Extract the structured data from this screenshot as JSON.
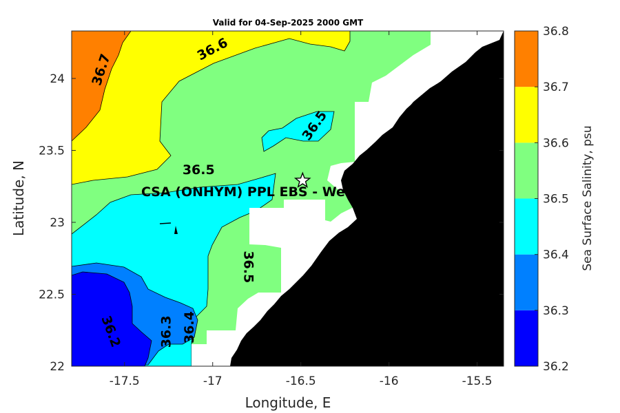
{
  "title": "Valid for 04-Sep-2025 2000 GMT",
  "xlabel": "Longitude, E",
  "ylabel": "Latitude, N",
  "colorbar_label": "Sea Surface Salinity, psu",
  "site_label": "CSA (ONHYM) PPL EBS  - We",
  "colors": {
    "bin_36_2": "#0000ff",
    "bin_36_3": "#0080ff",
    "bin_36_4": "#00ffff",
    "bin_36_5": "#80ff80",
    "bin_36_6": "#ffff00",
    "bin_36_7": "#ff8000",
    "land": "#000000",
    "no_data": "#ffffff"
  },
  "chart_data": {
    "type": "contourf",
    "xlim": [
      -17.8,
      -15.35
    ],
    "ylim": [
      22,
      24.33
    ],
    "xticks": [
      -17.5,
      -17,
      -16.5,
      -16,
      -15.5
    ],
    "xtick_labels": [
      "-17.5",
      "-17",
      "-16.5",
      "-16",
      "-15.5"
    ],
    "yticks": [
      22,
      22.5,
      23,
      23.5,
      24
    ],
    "ytick_labels": [
      "22",
      "22.5",
      "23",
      "23.5",
      "24"
    ],
    "colorbar": {
      "levels": [
        36.2,
        36.3,
        36.4,
        36.5,
        36.6,
        36.7,
        36.8
      ],
      "tick_labels": [
        "36.2",
        "36.3",
        "36.4",
        "36.5",
        "36.6",
        "36.7",
        "36.8"
      ]
    },
    "contour_labels": [
      {
        "text": "36.7",
        "x": -17.63,
        "y": 24.06,
        "angle": -72
      },
      {
        "text": "36.6",
        "x": -17.0,
        "y": 24.2,
        "angle": -28
      },
      {
        "text": "36.5",
        "x": -16.42,
        "y": 23.67,
        "angle": -55
      },
      {
        "text": "36.5",
        "x": -17.08,
        "y": 23.36,
        "angle": 0
      },
      {
        "text": "36.5",
        "x": -16.8,
        "y": 22.69,
        "angle": 90
      },
      {
        "text": "36.4",
        "x": -17.13,
        "y": 22.27,
        "angle": -90
      },
      {
        "text": "36.3",
        "x": -17.26,
        "y": 22.24,
        "angle": -90
      },
      {
        "text": "36.2",
        "x": -17.58,
        "y": 22.24,
        "angle": 70
      }
    ],
    "site": {
      "x": -16.49,
      "y": 23.29,
      "marker": "star"
    }
  }
}
